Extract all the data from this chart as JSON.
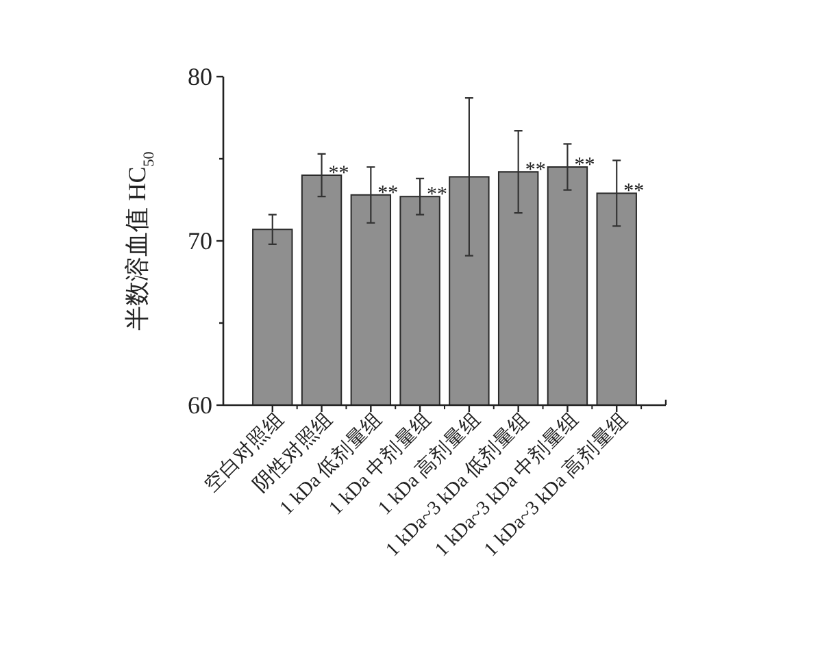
{
  "chart_data": {
    "type": "bar",
    "ylabel": "半数溶血值 HC$_{50}$",
    "categories": [
      "空白对照组",
      "阴性对照组",
      "1 kDa 低剂量组",
      "1 kDa 中剂量组",
      "1 kDa 高剂量组",
      "1 kDa~3 kDa 低剂量组",
      "1 kDa~3 kDa 中剂量组",
      "1 kDa~3 kDa 高剂量组"
    ],
    "values": [
      70.7,
      74.0,
      72.8,
      72.7,
      73.9,
      74.2,
      74.5,
      72.9
    ],
    "errors": [
      0.9,
      1.3,
      1.7,
      1.1,
      4.8,
      2.5,
      1.4,
      2.0
    ],
    "color": "#8f8f8f",
    "ylim": [
      60,
      80
    ],
    "yticks": [
      60,
      {
        "value": 65,
        "label": null
      },
      70,
      {
        "value": 75,
        "label": null
      },
      80
    ],
    "annotations": [
      {
        "text": "**",
        "x": "阴性对照组",
        "y": 74.0
      },
      {
        "text": "**",
        "x": "1 kDa 低剂量组",
        "y": 72.8
      },
      {
        "text": "**",
        "x": "1 kDa 中剂量组",
        "y": 72.7
      },
      {
        "text": "**",
        "x": "1 kDa~3 kDa 低剂量组",
        "y": 74.2
      },
      {
        "text": "**",
        "x": "1 kDa~3 kDa 中剂量组",
        "y": 74.5
      },
      {
        "text": "**",
        "x": "1 kDa~3 kDa 高剂量组",
        "y": 72.9
      }
    ]
  }
}
